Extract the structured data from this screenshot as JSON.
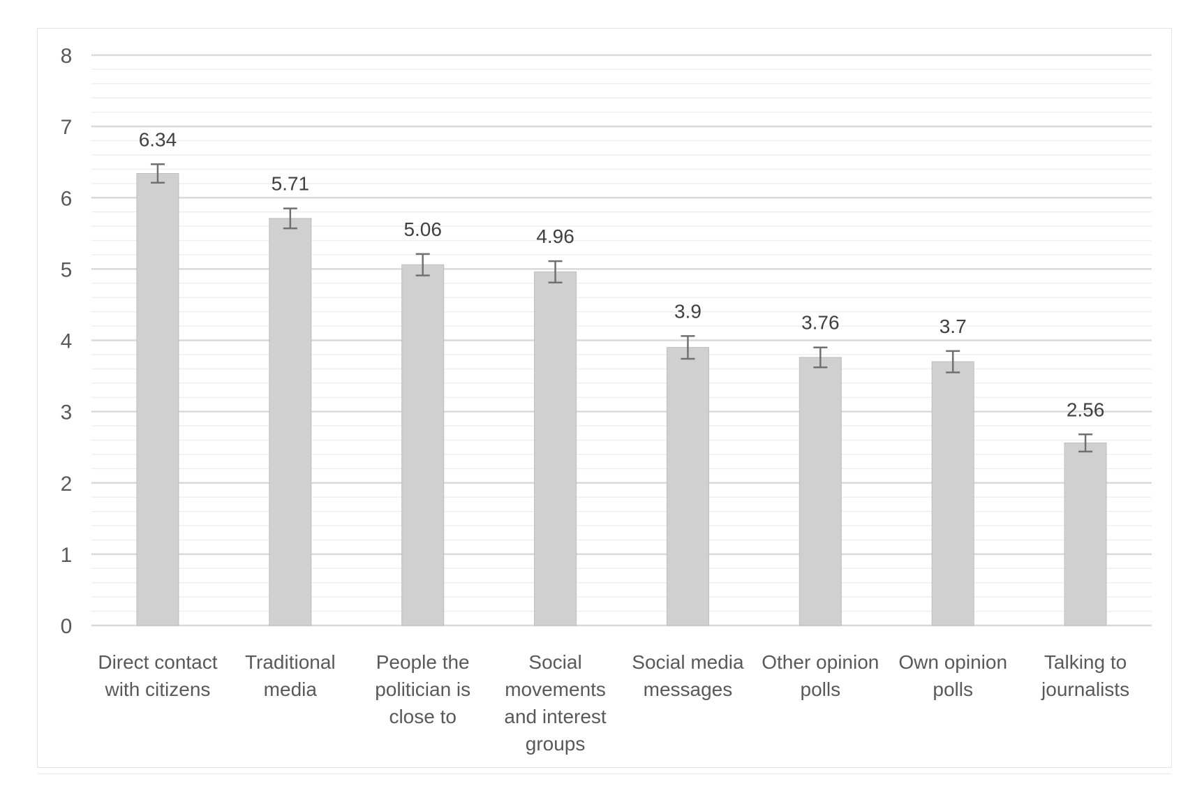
{
  "chart_data": {
    "type": "bar",
    "title": "",
    "xlabel": "",
    "ylabel": "",
    "ylim": [
      0,
      8
    ],
    "yticks": [
      0,
      1,
      2,
      3,
      4,
      5,
      6,
      7,
      8
    ],
    "grid": true,
    "legend": "none",
    "categories": [
      [
        "Direct contact",
        "with citizens"
      ],
      [
        "Traditional",
        "media"
      ],
      [
        "People the",
        "politician is",
        "close to"
      ],
      [
        "Social",
        "movements",
        "and interest",
        "groups"
      ],
      [
        "Social media",
        "messages"
      ],
      [
        "Other opinion",
        "polls"
      ],
      [
        "Own opinion",
        "polls"
      ],
      [
        "Talking to",
        "journalists"
      ]
    ],
    "values": [
      6.34,
      5.71,
      5.06,
      4.96,
      3.9,
      3.76,
      3.7,
      2.56
    ],
    "error_low": [
      6.21,
      5.57,
      4.91,
      4.81,
      3.74,
      3.62,
      3.55,
      2.44
    ],
    "error_high": [
      6.47,
      5.85,
      5.21,
      5.11,
      4.06,
      3.9,
      3.85,
      2.68
    ],
    "data_labels": [
      "6.34",
      "5.71",
      "5.06",
      "4.96",
      "3.9",
      "3.76",
      "3.7",
      "2.56"
    ],
    "colors": {
      "bar": "#d0d0d0",
      "bar_edge": "#bdbdbd",
      "error_bar": "#707070",
      "major_grid": "#d9d9d9",
      "minor_grid": "#efefef"
    }
  }
}
